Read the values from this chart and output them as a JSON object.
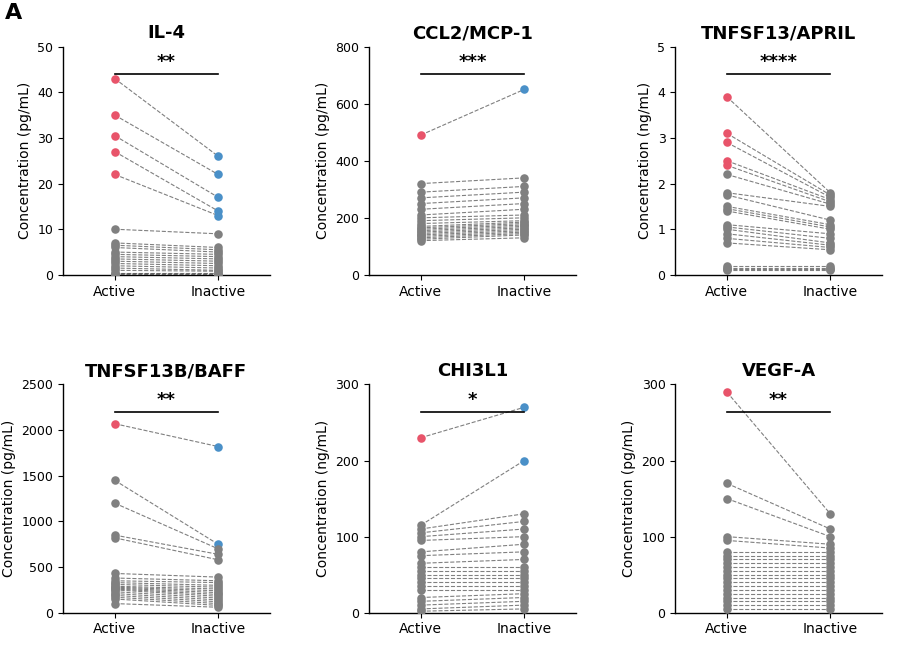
{
  "panels": [
    {
      "title": "IL-4",
      "ylabel": "Concentration (pg/mL)",
      "ylim": [
        0,
        50
      ],
      "yticks": [
        0,
        10,
        20,
        30,
        40,
        50
      ],
      "significance": "**",
      "active": [
        43,
        35,
        30.5,
        27,
        22,
        10,
        7,
        6.5,
        6,
        5,
        4.5,
        4,
        3.5,
        3,
        2.5,
        2,
        1.5,
        1,
        0.5,
        0.3,
        0.1
      ],
      "inactive": [
        26,
        22,
        17,
        14,
        13,
        9,
        6,
        5.5,
        5,
        4.5,
        4,
        3.5,
        3,
        2.5,
        2,
        1.5,
        1,
        0.8,
        0.5,
        0.2,
        0.05
      ],
      "active_highlight": [
        0,
        1,
        2,
        3,
        4
      ],
      "inactive_highlight": [
        0,
        1,
        2,
        3,
        4
      ]
    },
    {
      "title": "CCL2/MCP-1",
      "ylabel": "Concentration (pg/mL)",
      "ylim": [
        0,
        800
      ],
      "yticks": [
        0,
        200,
        400,
        600,
        800
      ],
      "significance": "***",
      "active": [
        490,
        320,
        290,
        270,
        250,
        230,
        210,
        200,
        190,
        180,
        170,
        165,
        160,
        155,
        150,
        145,
        140,
        135,
        130,
        125,
        120
      ],
      "inactive": [
        650,
        340,
        310,
        290,
        270,
        250,
        230,
        210,
        200,
        190,
        185,
        180,
        175,
        170,
        165,
        160,
        155,
        150,
        145,
        140,
        130
      ],
      "active_highlight": [
        0
      ],
      "inactive_highlight": [
        0
      ]
    },
    {
      "title": "TNFSF13/APRIL",
      "ylabel": "Concentration (ng/mL)",
      "ylim": [
        0,
        5
      ],
      "yticks": [
        0,
        1,
        2,
        3,
        4,
        5
      ],
      "significance": "****",
      "active": [
        3.9,
        3.1,
        2.9,
        2.5,
        2.4,
        2.2,
        1.8,
        1.75,
        1.5,
        1.45,
        1.4,
        1.1,
        1.05,
        1.0,
        0.9,
        0.8,
        0.7,
        0.2,
        0.15,
        0.12,
        0.1
      ],
      "inactive": [
        1.8,
        1.75,
        1.7,
        1.65,
        1.6,
        1.55,
        1.5,
        1.2,
        1.1,
        1.05,
        1.0,
        0.9,
        0.8,
        0.7,
        0.65,
        0.6,
        0.55,
        0.2,
        0.15,
        0.12,
        0.1
      ],
      "active_highlight": [
        0,
        1,
        2,
        3,
        4
      ],
      "inactive_highlight": []
    },
    {
      "title": "TNFSF13B/BAFF",
      "ylabel": "Concentration (pg/mL)",
      "ylim": [
        0,
        2500
      ],
      "yticks": [
        0,
        500,
        1000,
        1500,
        2000,
        2500
      ],
      "significance": "**",
      "active": [
        2070,
        1450,
        1200,
        850,
        820,
        430,
        380,
        350,
        330,
        310,
        290,
        280,
        270,
        260,
        250,
        230,
        210,
        190,
        170,
        150,
        100
      ],
      "inactive": [
        1820,
        750,
        700,
        640,
        580,
        390,
        350,
        330,
        300,
        280,
        260,
        240,
        220,
        200,
        180,
        160,
        140,
        120,
        100,
        80,
        60
      ],
      "active_highlight": [
        0
      ],
      "inactive_highlight": [
        0,
        1
      ]
    },
    {
      "title": "CHI3L1",
      "ylabel": "Concentration (ng/mL)",
      "ylim": [
        0,
        300
      ],
      "yticks": [
        0,
        100,
        200,
        300
      ],
      "significance": "*",
      "active": [
        230,
        115,
        110,
        105,
        100,
        95,
        80,
        75,
        65,
        60,
        55,
        50,
        45,
        40,
        35,
        30,
        20,
        15,
        10,
        5,
        2
      ],
      "inactive": [
        270,
        200,
        130,
        120,
        110,
        100,
        90,
        80,
        70,
        60,
        55,
        50,
        45,
        40,
        35,
        30,
        25,
        20,
        15,
        10,
        5
      ],
      "active_highlight": [
        0
      ],
      "inactive_highlight": [
        0,
        1
      ]
    },
    {
      "title": "VEGF-A",
      "ylabel": "Concentration (pg/mL)",
      "ylim": [
        0,
        300
      ],
      "yticks": [
        0,
        100,
        200,
        300
      ],
      "significance": "**",
      "active": [
        290,
        170,
        150,
        100,
        95,
        80,
        75,
        70,
        65,
        60,
        55,
        50,
        45,
        40,
        35,
        30,
        25,
        20,
        15,
        10,
        5
      ],
      "inactive": [
        130,
        110,
        100,
        90,
        85,
        80,
        75,
        70,
        65,
        60,
        55,
        50,
        45,
        40,
        35,
        30,
        25,
        20,
        15,
        10,
        5
      ],
      "active_highlight": [
        0
      ],
      "inactive_highlight": []
    }
  ],
  "pink_color": "#E8546A",
  "blue_color": "#4A90C8",
  "gray_color": "#808080",
  "line_color": "#555555",
  "dot_size": 38,
  "label_fontsize": 10,
  "title_fontsize": 13,
  "sig_fontsize": 13,
  "panel_label": "A"
}
